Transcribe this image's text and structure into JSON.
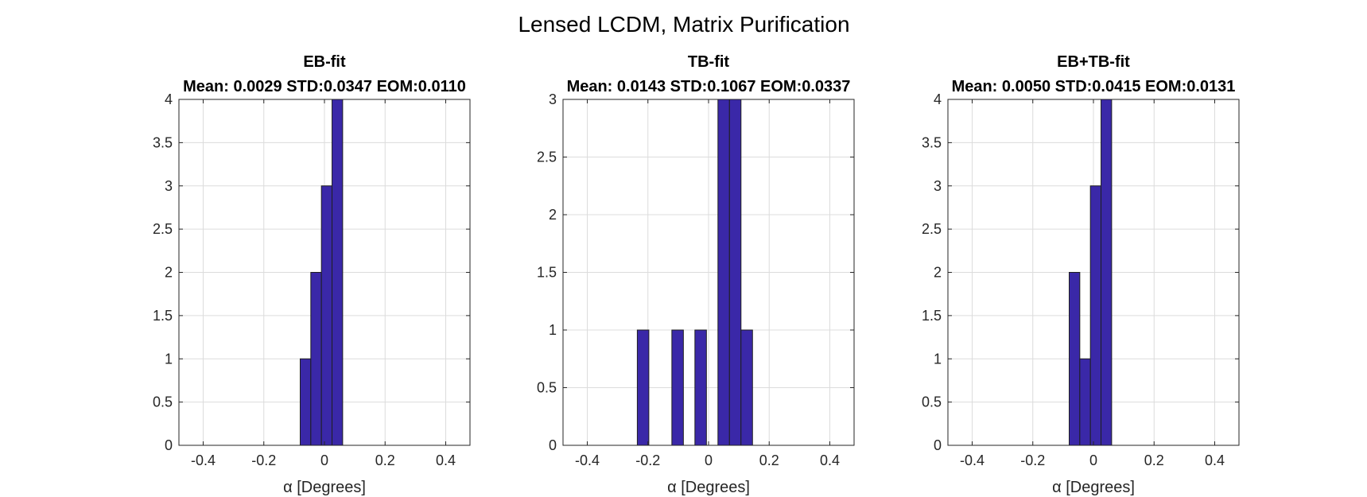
{
  "figure": {
    "suptitle": "Lensed LCDM, Matrix Purification",
    "bar_color": "#3a28a8"
  },
  "chart_data": [
    {
      "type": "bar",
      "title": "EB-fit",
      "subtitle": "Mean: 0.0029 STD:0.0347 EOM:0.0110",
      "xlabel": "α [Degrees]",
      "ylabel": "",
      "xlim": [
        -0.48,
        0.48
      ],
      "ylim": [
        0,
        4
      ],
      "xticks": [
        -0.4,
        -0.2,
        0,
        0.2,
        0.4
      ],
      "xtick_labels": [
        "-0.4",
        "-0.2",
        "0",
        "0.2",
        "0.4"
      ],
      "yticks": [
        0,
        0.5,
        1,
        1.5,
        2,
        2.5,
        3,
        3.5,
        4
      ],
      "ytick_labels": [
        "0",
        "0.5",
        "1",
        "1.5",
        "2",
        "2.5",
        "3",
        "3.5",
        "4"
      ],
      "grid": true,
      "bins": [
        {
          "x0": -0.08,
          "x1": -0.045,
          "count": 1
        },
        {
          "x0": -0.045,
          "x1": -0.01,
          "count": 2
        },
        {
          "x0": -0.01,
          "x1": 0.025,
          "count": 3
        },
        {
          "x0": 0.025,
          "x1": 0.06,
          "count": 4
        }
      ]
    },
    {
      "type": "bar",
      "title": "TB-fit",
      "subtitle": "Mean: 0.0143 STD:0.1067 EOM:0.0337",
      "xlabel": "α [Degrees]",
      "ylabel": "",
      "xlim": [
        -0.48,
        0.48
      ],
      "ylim": [
        0,
        3
      ],
      "xticks": [
        -0.4,
        -0.2,
        0,
        0.2,
        0.4
      ],
      "xtick_labels": [
        "-0.4",
        "-0.2",
        "0",
        "0.2",
        "0.4"
      ],
      "yticks": [
        0,
        0.5,
        1,
        1.5,
        2,
        2.5,
        3
      ],
      "ytick_labels": [
        "0",
        "0.5",
        "1",
        "1.5",
        "2",
        "2.5",
        "3"
      ],
      "grid": true,
      "bins": [
        {
          "x0": -0.235,
          "x1": -0.197,
          "count": 1
        },
        {
          "x0": -0.121,
          "x1": -0.083,
          "count": 1
        },
        {
          "x0": -0.045,
          "x1": -0.007,
          "count": 1
        },
        {
          "x0": 0.031,
          "x1": 0.069,
          "count": 3
        },
        {
          "x0": 0.069,
          "x1": 0.107,
          "count": 3
        },
        {
          "x0": 0.107,
          "x1": 0.145,
          "count": 1
        }
      ]
    },
    {
      "type": "bar",
      "title": "EB+TB-fit",
      "subtitle": "Mean: 0.0050 STD:0.0415 EOM:0.0131",
      "xlabel": "α [Degrees]",
      "ylabel": "",
      "xlim": [
        -0.48,
        0.48
      ],
      "ylim": [
        0,
        4
      ],
      "xticks": [
        -0.4,
        -0.2,
        0,
        0.2,
        0.4
      ],
      "xtick_labels": [
        "-0.4",
        "-0.2",
        "0",
        "0.2",
        "0.4"
      ],
      "yticks": [
        0,
        0.5,
        1,
        1.5,
        2,
        2.5,
        3,
        3.5,
        4
      ],
      "ytick_labels": [
        "0",
        "0.5",
        "1",
        "1.5",
        "2",
        "2.5",
        "3",
        "3.5",
        "4"
      ],
      "grid": true,
      "bins": [
        {
          "x0": -0.08,
          "x1": -0.045,
          "count": 2
        },
        {
          "x0": -0.045,
          "x1": -0.01,
          "count": 1
        },
        {
          "x0": -0.01,
          "x1": 0.025,
          "count": 3
        },
        {
          "x0": 0.025,
          "x1": 0.06,
          "count": 4
        }
      ]
    }
  ]
}
